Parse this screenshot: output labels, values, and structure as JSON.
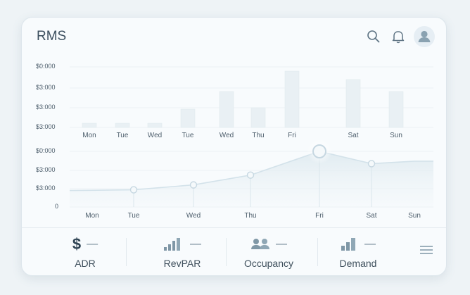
{
  "app": {
    "title": "RMS"
  },
  "header_icons": [
    "search-icon",
    "bell-icon",
    "user-icon"
  ],
  "colors": {
    "text": "#3c4f5f",
    "axis_label": "#4c5d6b",
    "bar_fill": "#e9f0f4",
    "line": "#d3e2ea",
    "point_fill": "#f5f9fb",
    "point_stroke": "#c6d7e1",
    "icon": "#7f97a6"
  },
  "chart_data": [
    {
      "type": "bar",
      "yticks": [
        "$0:000",
        "$3:000",
        "$3:000",
        "$3:000"
      ],
      "categories": [
        "Mon",
        "Tue",
        "Wed",
        "Tue",
        "Wed",
        "Thu",
        "Fri",
        "Sat",
        "Sun"
      ]
    },
    {
      "type": "line",
      "yticks": [
        "$0:000",
        "$3:000",
        "$3:000",
        "0"
      ],
      "categories": [
        "Mon",
        "Tue",
        "Wed",
        "Thu",
        "Fri",
        "Sat",
        "Sun"
      ],
      "values": [
        null,
        1.05,
        1.35,
        1.95,
        3.4,
        2.65,
        2.8
      ]
    }
  ],
  "footer": {
    "items": [
      {
        "label": "ADR",
        "dash": "—",
        "icon": "dollar-icon",
        "symbol": "$"
      },
      {
        "label": "RevPAR",
        "dash": "—",
        "icon": "bar-chart-icon"
      },
      {
        "label": "Occupancy",
        "dash": "—",
        "icon": "people-icon"
      },
      {
        "label": "Demand",
        "dash": "—",
        "icon": "bar-chart-icon"
      }
    ],
    "menu_icon": "menu-icon"
  }
}
